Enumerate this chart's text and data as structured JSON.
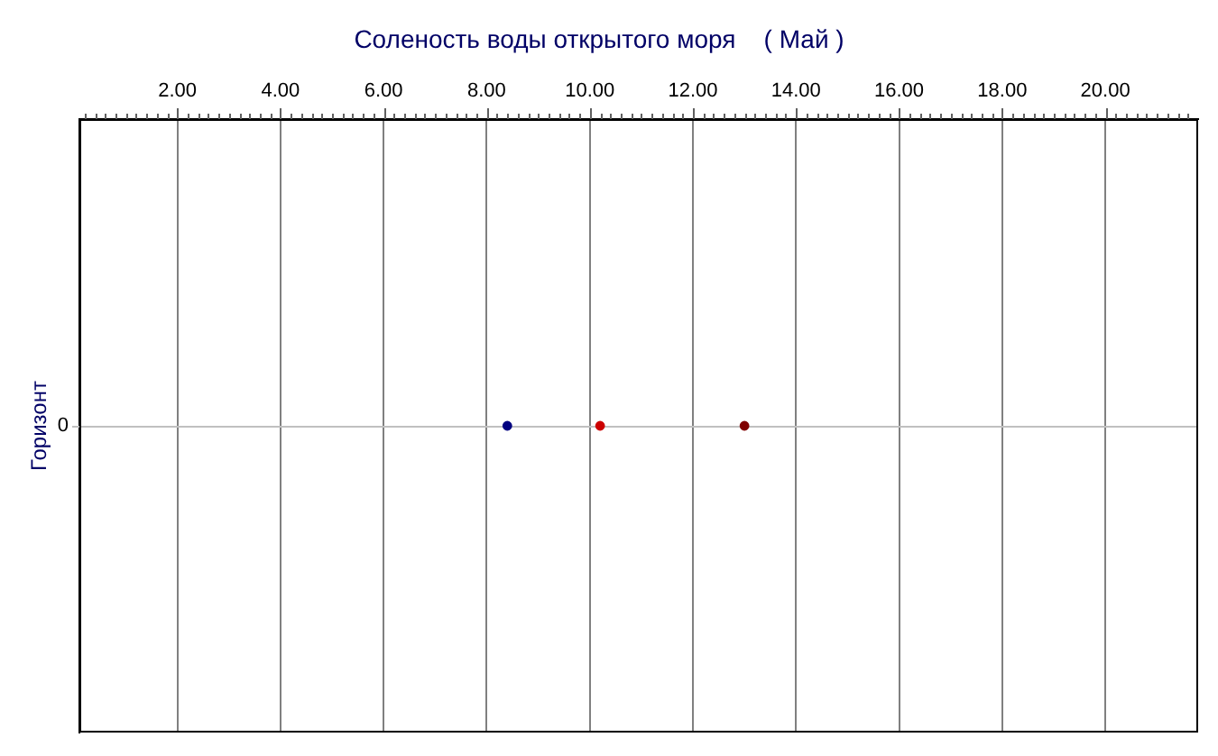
{
  "chart_data": {
    "type": "scatter",
    "orientation": "horizontal",
    "title": "Соленость воды открытого моря    ( Май )",
    "ylabel": "Горизонт",
    "categories": [
      "0"
    ],
    "series": [
      {
        "color": "#000080",
        "values": [
          8.4
        ]
      },
      {
        "color": "#cc0000",
        "values": [
          10.2
        ]
      },
      {
        "color": "#800000",
        "values": [
          13.0
        ]
      }
    ],
    "marker": "circle",
    "grid": "x",
    "ref_lines": [
      {
        "axis": "y",
        "value": "0",
        "color": "#c0c0c0"
      }
    ],
    "xlim": [
      0.1,
      21.8
    ],
    "xticks": [
      {
        "value": 0.2,
        "label": null
      },
      {
        "value": 0.4,
        "label": null
      },
      {
        "value": 0.6,
        "label": null
      },
      {
        "value": 0.8,
        "label": null
      },
      {
        "value": 1,
        "label": null
      },
      {
        "value": 1.2,
        "label": null
      },
      {
        "value": 1.4,
        "label": null
      },
      {
        "value": 1.6,
        "label": null
      },
      {
        "value": 1.8,
        "label": null
      },
      {
        "value": 2,
        "label": "2.00"
      },
      {
        "value": 2.2,
        "label": null
      },
      {
        "value": 2.4,
        "label": null
      },
      {
        "value": 2.6,
        "label": null
      },
      {
        "value": 2.8,
        "label": null
      },
      {
        "value": 3,
        "label": null
      },
      {
        "value": 3.2,
        "label": null
      },
      {
        "value": 3.4,
        "label": null
      },
      {
        "value": 3.6,
        "label": null
      },
      {
        "value": 3.8,
        "label": null
      },
      {
        "value": 4,
        "label": "4.00"
      },
      {
        "value": 4.2,
        "label": null
      },
      {
        "value": 4.4,
        "label": null
      },
      {
        "value": 4.6,
        "label": null
      },
      {
        "value": 4.8,
        "label": null
      },
      {
        "value": 5,
        "label": null
      },
      {
        "value": 5.2,
        "label": null
      },
      {
        "value": 5.4,
        "label": null
      },
      {
        "value": 5.6,
        "label": null
      },
      {
        "value": 5.8,
        "label": null
      },
      {
        "value": 6,
        "label": "6.00"
      },
      {
        "value": 6.2,
        "label": null
      },
      {
        "value": 6.4,
        "label": null
      },
      {
        "value": 6.6,
        "label": null
      },
      {
        "value": 6.8,
        "label": null
      },
      {
        "value": 7,
        "label": null
      },
      {
        "value": 7.2,
        "label": null
      },
      {
        "value": 7.4,
        "label": null
      },
      {
        "value": 7.6,
        "label": null
      },
      {
        "value": 7.8,
        "label": null
      },
      {
        "value": 8,
        "label": "8.00"
      },
      {
        "value": 8.2,
        "label": null
      },
      {
        "value": 8.4,
        "label": null
      },
      {
        "value": 8.6,
        "label": null
      },
      {
        "value": 8.8,
        "label": null
      },
      {
        "value": 9,
        "label": null
      },
      {
        "value": 9.2,
        "label": null
      },
      {
        "value": 9.4,
        "label": null
      },
      {
        "value": 9.6,
        "label": null
      },
      {
        "value": 9.8,
        "label": null
      },
      {
        "value": 10,
        "label": "10.00"
      },
      {
        "value": 10.2,
        "label": null
      },
      {
        "value": 10.4,
        "label": null
      },
      {
        "value": 10.6,
        "label": null
      },
      {
        "value": 10.8,
        "label": null
      },
      {
        "value": 11,
        "label": null
      },
      {
        "value": 11.2,
        "label": null
      },
      {
        "value": 11.4,
        "label": null
      },
      {
        "value": 11.6,
        "label": null
      },
      {
        "value": 11.8,
        "label": null
      },
      {
        "value": 12,
        "label": "12.00"
      },
      {
        "value": 12.2,
        "label": null
      },
      {
        "value": 12.4,
        "label": null
      },
      {
        "value": 12.6,
        "label": null
      },
      {
        "value": 12.8,
        "label": null
      },
      {
        "value": 13,
        "label": null
      },
      {
        "value": 13.2,
        "label": null
      },
      {
        "value": 13.4,
        "label": null
      },
      {
        "value": 13.6,
        "label": null
      },
      {
        "value": 13.8,
        "label": null
      },
      {
        "value": 14,
        "label": "14.00"
      },
      {
        "value": 14.2,
        "label": null
      },
      {
        "value": 14.4,
        "label": null
      },
      {
        "value": 14.6,
        "label": null
      },
      {
        "value": 14.8,
        "label": null
      },
      {
        "value": 15,
        "label": null
      },
      {
        "value": 15.2,
        "label": null
      },
      {
        "value": 15.4,
        "label": null
      },
      {
        "value": 15.6,
        "label": null
      },
      {
        "value": 15.8,
        "label": null
      },
      {
        "value": 16,
        "label": "16.00"
      },
      {
        "value": 16.2,
        "label": null
      },
      {
        "value": 16.4,
        "label": null
      },
      {
        "value": 16.6,
        "label": null
      },
      {
        "value": 16.8,
        "label": null
      },
      {
        "value": 17,
        "label": null
      },
      {
        "value": 17.2,
        "label": null
      },
      {
        "value": 17.4,
        "label": null
      },
      {
        "value": 17.6,
        "label": null
      },
      {
        "value": 17.8,
        "label": null
      },
      {
        "value": 18,
        "label": "18.00"
      },
      {
        "value": 18.2,
        "label": null
      },
      {
        "value": 18.4,
        "label": null
      },
      {
        "value": 18.6,
        "label": null
      },
      {
        "value": 18.8,
        "label": null
      },
      {
        "value": 19,
        "label": null
      },
      {
        "value": 19.2,
        "label": null
      },
      {
        "value": 19.4,
        "label": null
      },
      {
        "value": 19.6,
        "label": null
      },
      {
        "value": 19.8,
        "label": null
      },
      {
        "value": 20,
        "label": "20.00"
      },
      {
        "value": 20.2,
        "label": null
      },
      {
        "value": 20.4,
        "label": null
      },
      {
        "value": 20.6,
        "label": null
      },
      {
        "value": 20.8,
        "label": null
      },
      {
        "value": 21,
        "label": null
      },
      {
        "value": 21.2,
        "label": null
      },
      {
        "value": 21.4,
        "label": null
      },
      {
        "value": 21.6,
        "label": null
      }
    ]
  }
}
